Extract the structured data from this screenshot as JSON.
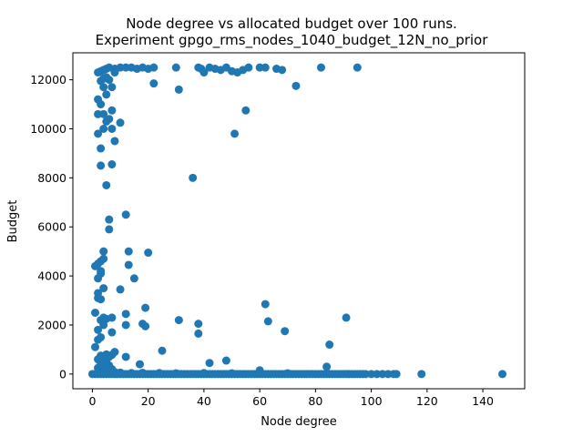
{
  "chart_data": {
    "type": "scatter",
    "title": "Node degree vs allocated budget over 100 runs.",
    "subtitle": "Experiment gpgo_rms_nodes_1040_budget_12N_no_prior",
    "xlabel": "Node degree",
    "ylabel": "Budget",
    "xlim": [
      -7,
      155
    ],
    "ylim": [
      -600,
      13100
    ],
    "xticks": [
      0,
      20,
      40,
      60,
      80,
      100,
      120,
      140
    ],
    "yticks": [
      0,
      2000,
      4000,
      6000,
      8000,
      10000,
      12000
    ],
    "grid": false,
    "marker_color": "#1f77b4",
    "series": [
      {
        "points": [
          [
            0,
            0
          ],
          [
            1,
            0
          ],
          [
            2,
            0
          ],
          [
            3,
            0
          ],
          [
            4,
            0
          ],
          [
            5,
            0
          ],
          [
            6,
            0
          ],
          [
            7,
            0
          ],
          [
            8,
            0
          ],
          [
            9,
            0
          ],
          [
            10,
            0
          ],
          [
            11,
            0
          ],
          [
            12,
            0
          ],
          [
            13,
            0
          ],
          [
            14,
            0
          ],
          [
            15,
            0
          ],
          [
            16,
            0
          ],
          [
            17,
            0
          ],
          [
            18,
            0
          ],
          [
            19,
            0
          ],
          [
            20,
            0
          ],
          [
            21,
            0
          ],
          [
            22,
            0
          ],
          [
            23,
            0
          ],
          [
            24,
            0
          ],
          [
            25,
            0
          ],
          [
            26,
            0
          ],
          [
            27,
            0
          ],
          [
            28,
            0
          ],
          [
            29,
            0
          ],
          [
            30,
            0
          ],
          [
            31,
            0
          ],
          [
            32,
            0
          ],
          [
            33,
            0
          ],
          [
            34,
            0
          ],
          [
            35,
            0
          ],
          [
            36,
            0
          ],
          [
            37,
            0
          ],
          [
            38,
            0
          ],
          [
            39,
            0
          ],
          [
            40,
            0
          ],
          [
            41,
            0
          ],
          [
            42,
            0
          ],
          [
            43,
            0
          ],
          [
            44,
            0
          ],
          [
            45,
            0
          ],
          [
            46,
            0
          ],
          [
            47,
            0
          ],
          [
            48,
            0
          ],
          [
            49,
            0
          ],
          [
            50,
            0
          ],
          [
            51,
            0
          ],
          [
            52,
            0
          ],
          [
            53,
            0
          ],
          [
            54,
            0
          ],
          [
            55,
            0
          ],
          [
            56,
            0
          ],
          [
            57,
            0
          ],
          [
            58,
            0
          ],
          [
            59,
            0
          ],
          [
            60,
            0
          ],
          [
            61,
            0
          ],
          [
            62,
            0
          ],
          [
            63,
            0
          ],
          [
            64,
            0
          ],
          [
            65,
            0
          ],
          [
            66,
            0
          ],
          [
            67,
            0
          ],
          [
            68,
            0
          ],
          [
            69,
            0
          ],
          [
            70,
            0
          ],
          [
            71,
            0
          ],
          [
            72,
            0
          ],
          [
            73,
            0
          ],
          [
            74,
            0
          ],
          [
            75,
            0
          ],
          [
            76,
            0
          ],
          [
            77,
            0
          ],
          [
            78,
            0
          ],
          [
            79,
            0
          ],
          [
            80,
            0
          ],
          [
            81,
            0
          ],
          [
            82,
            0
          ],
          [
            83,
            0
          ],
          [
            84,
            0
          ],
          [
            85,
            0
          ],
          [
            86,
            0
          ],
          [
            87,
            0
          ],
          [
            88,
            0
          ],
          [
            89,
            0
          ],
          [
            90,
            0
          ],
          [
            91,
            0
          ],
          [
            92,
            0
          ],
          [
            93,
            0
          ],
          [
            94,
            0
          ],
          [
            95,
            0
          ],
          [
            96,
            0
          ],
          [
            97,
            0
          ],
          [
            98,
            0
          ],
          [
            100,
            0
          ],
          [
            102,
            0
          ],
          [
            104,
            0
          ],
          [
            106,
            0
          ],
          [
            108,
            0
          ],
          [
            109,
            0
          ],
          [
            118,
            0
          ],
          [
            147,
            0
          ],
          [
            2,
            50
          ],
          [
            4,
            60
          ],
          [
            6,
            40
          ],
          [
            8,
            80
          ],
          [
            10,
            60
          ],
          [
            14,
            40
          ],
          [
            18,
            50
          ],
          [
            24,
            40
          ],
          [
            30,
            30
          ],
          [
            40,
            40
          ],
          [
            50,
            30
          ],
          [
            60,
            150
          ],
          [
            70,
            30
          ],
          [
            3,
            120
          ],
          [
            5,
            150
          ],
          [
            7,
            200
          ],
          [
            2,
            250
          ],
          [
            4,
            300
          ],
          [
            6,
            350
          ],
          [
            3,
            450
          ],
          [
            5,
            500
          ],
          [
            2,
            600
          ],
          [
            4,
            650
          ],
          [
            3,
            750
          ],
          [
            5,
            800
          ],
          [
            6,
            700
          ],
          [
            7,
            780
          ],
          [
            1,
            1100
          ],
          [
            2,
            1400
          ],
          [
            2,
            1800
          ],
          [
            3,
            2200
          ],
          [
            4,
            2300
          ],
          [
            5,
            2250
          ],
          [
            7,
            2300
          ],
          [
            3,
            1500
          ],
          [
            4,
            2000
          ],
          [
            7,
            1700
          ],
          [
            8,
            900
          ],
          [
            12,
            700
          ],
          [
            1,
            2500
          ],
          [
            2,
            3100
          ],
          [
            3,
            3050
          ],
          [
            2,
            3300
          ],
          [
            4,
            3500
          ],
          [
            2,
            3900
          ],
          [
            3,
            4100
          ],
          [
            3,
            4200
          ],
          [
            1,
            4400
          ],
          [
            2,
            4500
          ],
          [
            3,
            4600
          ],
          [
            4,
            4700
          ],
          [
            4,
            5000
          ],
          [
            6,
            5900
          ],
          [
            6,
            6300
          ],
          [
            10,
            3450
          ],
          [
            12,
            2450
          ],
          [
            12,
            2000
          ],
          [
            13,
            5000
          ],
          [
            13,
            4450
          ],
          [
            15,
            3900
          ],
          [
            18,
            2050
          ],
          [
            19,
            1950
          ],
          [
            19,
            2700
          ],
          [
            12,
            6500
          ],
          [
            20,
            4950
          ],
          [
            17,
            400
          ],
          [
            25,
            950
          ],
          [
            31,
            2200
          ],
          [
            38,
            2050
          ],
          [
            38,
            1650
          ],
          [
            42,
            450
          ],
          [
            48,
            550
          ],
          [
            62,
            2850
          ],
          [
            63,
            2150
          ],
          [
            69,
            1750
          ],
          [
            84,
            300
          ],
          [
            85,
            1200
          ],
          [
            91,
            2300
          ],
          [
            5,
            7700
          ],
          [
            3,
            8500
          ],
          [
            7,
            8550
          ],
          [
            3,
            9200
          ],
          [
            8,
            9500
          ],
          [
            2,
            9800
          ],
          [
            4,
            10000
          ],
          [
            7,
            10000
          ],
          [
            5,
            10300
          ],
          [
            2,
            10600
          ],
          [
            6,
            10400
          ],
          [
            10,
            10250
          ],
          [
            4,
            10600
          ],
          [
            7,
            10750
          ],
          [
            3,
            11000
          ],
          [
            2,
            11200
          ],
          [
            5,
            11400
          ],
          [
            7,
            11700
          ],
          [
            4,
            11700
          ],
          [
            2,
            12300
          ],
          [
            3,
            12350
          ],
          [
            4,
            12400
          ],
          [
            5,
            12450
          ],
          [
            6,
            12500
          ],
          [
            8,
            12450
          ],
          [
            10,
            12500
          ],
          [
            12,
            12500
          ],
          [
            14,
            12500
          ],
          [
            16,
            12450
          ],
          [
            18,
            12500
          ],
          [
            20,
            12450
          ],
          [
            4,
            12050
          ],
          [
            5,
            12100
          ],
          [
            3,
            11950
          ],
          [
            6,
            12000
          ],
          [
            8,
            12300
          ],
          [
            22,
            11850
          ],
          [
            22,
            12500
          ],
          [
            30,
            12500
          ],
          [
            31,
            11600
          ],
          [
            36,
            8000
          ],
          [
            38,
            12500
          ],
          [
            39,
            12450
          ],
          [
            40,
            12300
          ],
          [
            42,
            12500
          ],
          [
            44,
            12450
          ],
          [
            46,
            12400
          ],
          [
            48,
            12500
          ],
          [
            50,
            12350
          ],
          [
            52,
            12300
          ],
          [
            54,
            12400
          ],
          [
            56,
            12500
          ],
          [
            51,
            9800
          ],
          [
            55,
            10750
          ],
          [
            60,
            12500
          ],
          [
            62,
            12500
          ],
          [
            66,
            12450
          ],
          [
            68,
            12400
          ],
          [
            73,
            11750
          ],
          [
            82,
            12500
          ],
          [
            95,
            12500
          ]
        ]
      }
    ]
  }
}
